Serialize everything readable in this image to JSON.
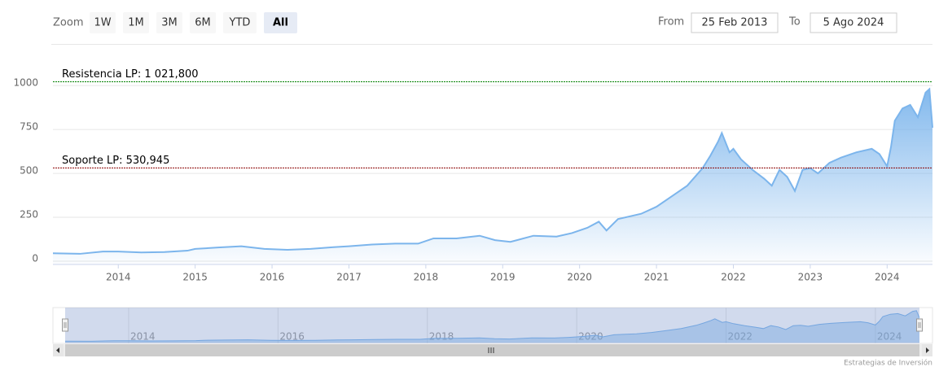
{
  "range_selector": {
    "zoom_label": "Zoom",
    "buttons": [
      "1W",
      "1M",
      "3M",
      "6M",
      "YTD",
      "All"
    ],
    "selected": 5,
    "from_label": "From",
    "from": "25 Feb 2013",
    "to_label": "To",
    "to": "5 Ago 2024"
  },
  "chart_data": {
    "type": "area",
    "x": [
      2013.15,
      2013.5,
      2013.8,
      2014.0,
      2014.3,
      2014.6,
      2014.9,
      2015.0,
      2015.3,
      2015.6,
      2015.9,
      2016.2,
      2016.5,
      2016.8,
      2017.0,
      2017.3,
      2017.6,
      2017.9,
      2018.1,
      2018.4,
      2018.7,
      2018.9,
      2019.1,
      2019.4,
      2019.7,
      2019.9,
      2020.1,
      2020.25,
      2020.35,
      2020.5,
      2020.8,
      2021.0,
      2021.2,
      2021.4,
      2021.6,
      2021.7,
      2021.8,
      2021.85,
      2021.95,
      2022.0,
      2022.1,
      2022.25,
      2022.4,
      2022.5,
      2022.6,
      2022.7,
      2022.8,
      2022.9,
      2023.0,
      2023.1,
      2023.25,
      2023.4,
      2023.6,
      2023.8,
      2023.9,
      2024.0,
      2024.05,
      2024.1,
      2024.2,
      2024.3,
      2024.4,
      2024.5,
      2024.55,
      2024.59
    ],
    "series": [
      {
        "color": "#7cb5ec",
        "values": [
          45,
          42,
          55,
          55,
          50,
          52,
          60,
          70,
          78,
          85,
          70,
          65,
          70,
          80,
          85,
          95,
          100,
          100,
          130,
          130,
          145,
          120,
          110,
          145,
          140,
          160,
          190,
          225,
          175,
          240,
          270,
          310,
          370,
          430,
          530,
          600,
          680,
          730,
          620,
          640,
          580,
          520,
          470,
          430,
          520,
          480,
          400,
          520,
          530,
          500,
          560,
          590,
          620,
          640,
          610,
          540,
          650,
          800,
          870,
          890,
          820,
          960,
          980,
          760
        ]
      }
    ],
    "xlim": [
      2013.15,
      2024.59
    ],
    "xticks": [
      2014,
      2015,
      2016,
      2017,
      2018,
      2019,
      2020,
      2021,
      2022,
      2023,
      2024
    ],
    "ylim": [
      0,
      1200
    ],
    "yticks": [
      0,
      250,
      500,
      750,
      1000
    ],
    "grid": true,
    "plot_lines": [
      {
        "label": "Resistencia LP: 1 021,800",
        "value": 1021.8,
        "color": "#008000"
      },
      {
        "label": "Soporte LP: 530,945",
        "value": 530.945,
        "color": "#8b0000"
      }
    ],
    "navigator": {
      "xticks": [
        2014,
        2016,
        2018,
        2020,
        2022,
        2024
      ]
    }
  },
  "credits": "Estrategias de Inversión"
}
